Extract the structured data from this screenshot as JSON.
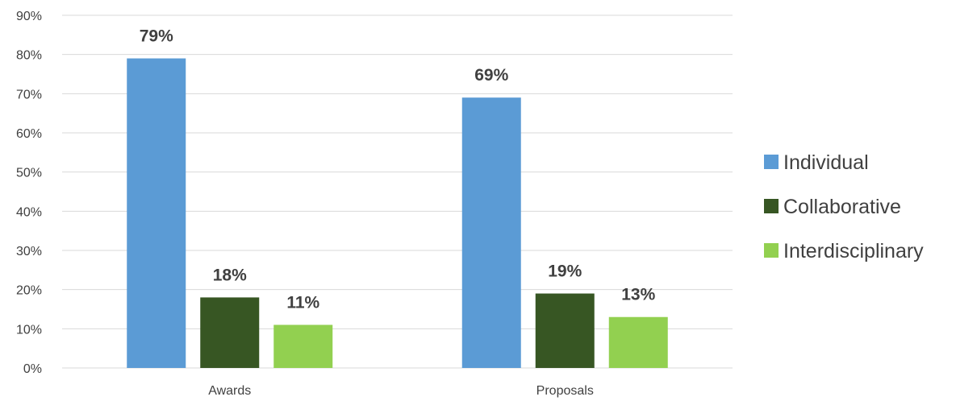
{
  "chart_data": {
    "type": "bar",
    "categories": [
      "Awards",
      "Proposals"
    ],
    "series": [
      {
        "name": "Individual",
        "values": [
          79,
          69
        ],
        "labels": [
          "79%",
          "69%"
        ]
      },
      {
        "name": "Collaborative",
        "values": [
          18,
          19
        ],
        "labels": [
          "18%",
          "19%"
        ]
      },
      {
        "name": "Interdisciplinary",
        "values": [
          11,
          13
        ],
        "labels": [
          "11%",
          "13%"
        ]
      }
    ],
    "colors": [
      "#5B9BD5",
      "#375623",
      "#92D050"
    ],
    "ylim": [
      0,
      90
    ],
    "yticks": [
      "0%",
      "10%",
      "20%",
      "30%",
      "40%",
      "50%",
      "60%",
      "70%",
      "80%",
      "90%"
    ],
    "grid": true,
    "legend_position": "right"
  }
}
